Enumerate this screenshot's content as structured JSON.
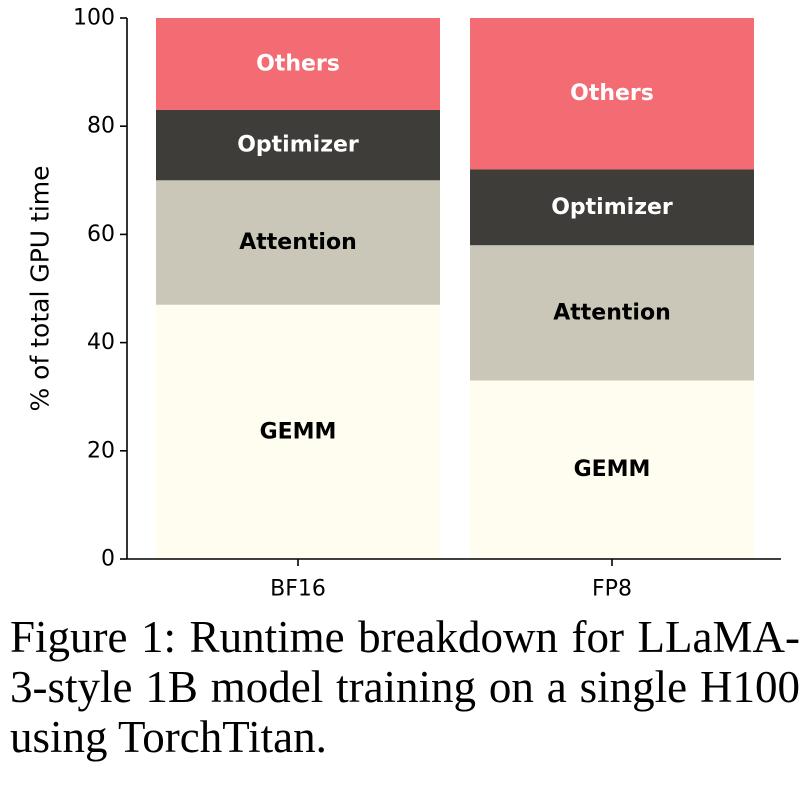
{
  "chart_data": {
    "type": "bar",
    "stacked": true,
    "categories": [
      "BF16",
      "FP8"
    ],
    "series": [
      {
        "name": "GEMM",
        "values": [
          47,
          33
        ],
        "color": "#fffcf0",
        "label_color": "#000000"
      },
      {
        "name": "Attention",
        "values": [
          23,
          25
        ],
        "color": "#cbc7b8",
        "label_color": "#000000"
      },
      {
        "name": "Optimizer",
        "values": [
          13,
          14
        ],
        "color": "#3f3d39",
        "label_color": "#ffffff"
      },
      {
        "name": "Others",
        "values": [
          17,
          28
        ],
        "color": "#f46c73",
        "label_color": "#ffffff"
      }
    ],
    "ylabel": "% of total GPU time",
    "ylim": [
      0,
      100
    ],
    "yticks": [
      0,
      20,
      40,
      60,
      80,
      100
    ],
    "grid": false,
    "legend": "none"
  },
  "caption": "Figure 1:  Runtime breakdown for LLaMA-3-style 1B model training on a single H100 using TorchTitan."
}
